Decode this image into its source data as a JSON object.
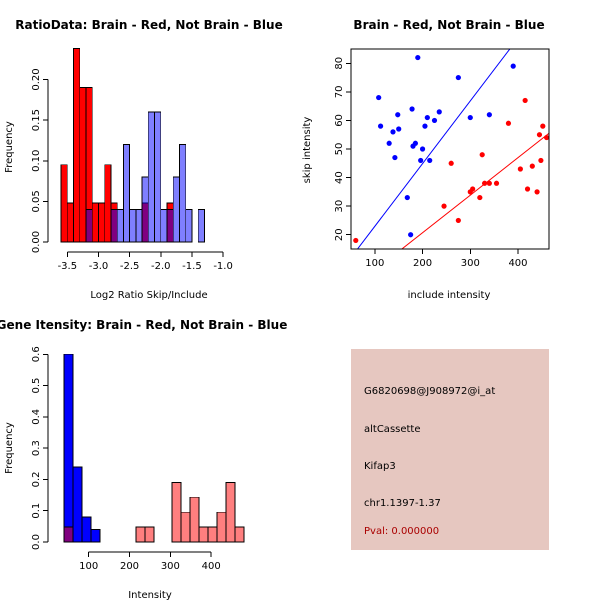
{
  "chart_data": [
    {
      "type": "histogram",
      "title": "RatioData: Brain - Red, Not Brain - Blue",
      "xlabel": "Log2 Ratio Skip/Include",
      "ylabel": "Frequency",
      "xlim": [
        -3.65,
        -0.6
      ],
      "ylim": [
        0,
        0.24
      ],
      "xticks": [
        -3.5,
        -3.0,
        -2.5,
        -2.0,
        -1.5,
        -1.0
      ],
      "xtick_labels": [
        "-3.5",
        "-3.0",
        "-2.5",
        "-2.0",
        "-1.5",
        "-1.0"
      ],
      "yticks": [
        0.0,
        0.05,
        0.1,
        0.15,
        0.2
      ],
      "ytick_labels": [
        "0.00",
        "0.05",
        "0.10",
        "0.15",
        "0.20"
      ],
      "series": [
        {
          "name": "Brain",
          "color": "#ff0000",
          "bins": [
            [
              -3.6,
              -3.5,
              0.095
            ],
            [
              -3.5,
              -3.4,
              0.048
            ],
            [
              -3.4,
              -3.3,
              0.238
            ],
            [
              -3.3,
              -3.2,
              0.19
            ],
            [
              -3.2,
              -3.1,
              0.19
            ],
            [
              -3.1,
              -3.0,
              0.048
            ],
            [
              -3.0,
              -2.9,
              0.048
            ],
            [
              -2.9,
              -2.8,
              0.095
            ],
            [
              -2.8,
              -2.7,
              0.048
            ],
            [
              -2.3,
              -2.2,
              0.048
            ],
            [
              -1.9,
              -1.8,
              0.048
            ]
          ]
        },
        {
          "name": "Not Brain",
          "color": "#0000ff",
          "bins": [
            [
              -3.2,
              -3.1,
              0.04
            ],
            [
              -2.8,
              -2.7,
              0.04
            ],
            [
              -2.7,
              -2.6,
              0.04
            ],
            [
              -2.6,
              -2.5,
              0.12
            ],
            [
              -2.5,
              -2.4,
              0.04
            ],
            [
              -2.4,
              -2.3,
              0.04
            ],
            [
              -2.3,
              -2.2,
              0.08
            ],
            [
              -2.2,
              -2.1,
              0.16
            ],
            [
              -2.1,
              -2.0,
              0.16
            ],
            [
              -2.0,
              -1.9,
              0.04
            ],
            [
              -1.9,
              -1.8,
              0.04
            ],
            [
              -1.8,
              -1.7,
              0.08
            ],
            [
              -1.7,
              -1.6,
              0.12
            ],
            [
              -1.6,
              -1.5,
              0.04
            ],
            [
              -1.4,
              -1.3,
              0.04
            ]
          ]
        }
      ]
    },
    {
      "type": "scatter",
      "title": "Brain - Red, Not Brain - Blue",
      "xlabel": "include intensity",
      "ylabel": "skip intensity",
      "xlim": [
        50,
        465
      ],
      "ylim": [
        15,
        85
      ],
      "xticks": [
        100,
        200,
        300,
        400
      ],
      "xtick_labels": [
        "100",
        "200",
        "300",
        "400"
      ],
      "yticks": [
        20,
        30,
        40,
        50,
        60,
        70,
        80
      ],
      "ytick_labels": [
        "20",
        "30",
        "40",
        "50",
        "60",
        "70",
        "80"
      ],
      "series": [
        {
          "name": "Not Brain",
          "color": "#0000ff",
          "points": [
            [
              108,
              68
            ],
            [
              112,
              58
            ],
            [
              130,
              52
            ],
            [
              138,
              56
            ],
            [
              142,
              47
            ],
            [
              148,
              62
            ],
            [
              150,
              57
            ],
            [
              168,
              33
            ],
            [
              175,
              20
            ],
            [
              178,
              64
            ],
            [
              180,
              51
            ],
            [
              185,
              52
            ],
            [
              190,
              82
            ],
            [
              196,
              46
            ],
            [
              200,
              50
            ],
            [
              205,
              58
            ],
            [
              210,
              61
            ],
            [
              215,
              46
            ],
            [
              225,
              60
            ],
            [
              235,
              63
            ],
            [
              275,
              75
            ],
            [
              300,
              61
            ],
            [
              340,
              62
            ],
            [
              390,
              79
            ]
          ],
          "fit_line": [
            [
              50,
              12
            ],
            [
              465,
              103
            ]
          ]
        },
        {
          "name": "Brain",
          "color": "#ff0000",
          "points": [
            [
              60,
              18
            ],
            [
              245,
              30
            ],
            [
              260,
              45
            ],
            [
              275,
              25
            ],
            [
              300,
              35
            ],
            [
              305,
              36
            ],
            [
              320,
              33
            ],
            [
              325,
              48
            ],
            [
              330,
              38
            ],
            [
              340,
              38
            ],
            [
              355,
              38
            ],
            [
              380,
              59
            ],
            [
              405,
              43
            ],
            [
              415,
              67
            ],
            [
              420,
              36
            ],
            [
              430,
              44
            ],
            [
              440,
              35
            ],
            [
              445,
              55
            ],
            [
              448,
              46
            ],
            [
              452,
              58
            ],
            [
              460,
              54
            ]
          ],
          "fit_line": [
            [
              50,
              1
            ],
            [
              465,
              55.5
            ]
          ]
        }
      ]
    },
    {
      "type": "histogram",
      "title": "Gene Itensity: Brain - Red, Not Brain - Blue",
      "xlabel": "Intensity",
      "ylabel": "Frequency",
      "xlim": [
        25,
        490
      ],
      "ylim": [
        0,
        0.62
      ],
      "xticks": [
        100,
        200,
        300,
        400
      ],
      "xtick_labels": [
        "100",
        "200",
        "300",
        "400"
      ],
      "yticks": [
        0.0,
        0.1,
        0.2,
        0.3,
        0.4,
        0.5,
        0.6
      ],
      "ytick_labels": [
        "0.0",
        "0.1",
        "0.2",
        "0.3",
        "0.4",
        "0.5",
        "0.6"
      ],
      "series": [
        {
          "name": "Not Brain",
          "color": "#0000ff",
          "bins": [
            [
              40,
              62,
              0.6
            ],
            [
              62,
              84,
              0.24
            ],
            [
              84,
              106,
              0.08
            ],
            [
              106,
              128,
              0.04
            ]
          ]
        },
        {
          "name": "Brain",
          "color": "#ff0000",
          "bins": [
            [
              40,
              62,
              0.048
            ],
            [
              216,
              238,
              0.048
            ],
            [
              238,
              260,
              0.048
            ],
            [
              304,
              326,
              0.19
            ],
            [
              326,
              348,
              0.095
            ],
            [
              348,
              370,
              0.143
            ],
            [
              370,
              392,
              0.048
            ],
            [
              392,
              414,
              0.048
            ],
            [
              414,
              436,
              0.095
            ],
            [
              436,
              458,
              0.19
            ],
            [
              458,
              480,
              0.048
            ]
          ]
        }
      ]
    }
  ],
  "info": {
    "probe_id": "G6820698@J908972@i_at",
    "event_type": "altCassette",
    "gene": "Kifap3",
    "location": "chr1.1397-1.37",
    "pval": "Pval: 0.000000",
    "pval_color": "#aa0000"
  }
}
